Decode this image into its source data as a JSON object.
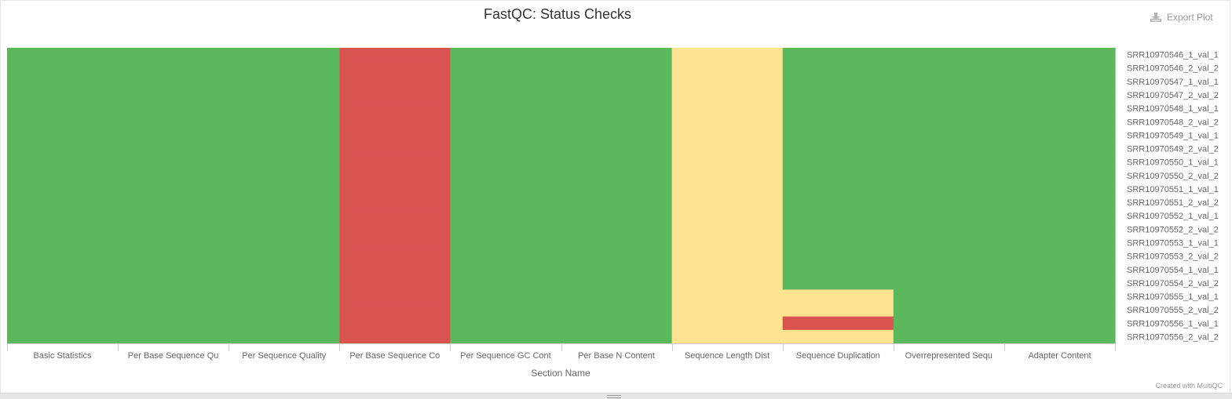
{
  "title": "FastQC: Status Checks",
  "export_label": "Export Plot",
  "credit": "Created with MultiQC",
  "colors": {
    "pass": "#5cb85c",
    "warn": "#fee391",
    "fail": "#d9534f"
  },
  "chart_data": {
    "type": "heatmap",
    "title": "FastQC: Status Checks",
    "xlabel": "Section Name",
    "ylabel": "",
    "x_categories": [
      "Basic Statistics",
      "Per Base Sequence Qu",
      "Per Sequence Quality",
      "Per Base Sequence Co",
      "Per Sequence GC Cont",
      "Per Base N Content",
      "Sequence Length Dist",
      "Sequence Duplication",
      "Overrepresented Sequ",
      "Adapter Content"
    ],
    "y_categories": [
      "SRR10970546_1_val_1",
      "SRR10970546_2_val_2",
      "SRR10970547_1_val_1",
      "SRR10970547_2_val_2",
      "SRR10970548_1_val_1",
      "SRR10970548_2_val_2",
      "SRR10970549_1_val_1",
      "SRR10970549_2_val_2",
      "SRR10970550_1_val_1",
      "SRR10970550_2_val_2",
      "SRR10970551_1_val_1",
      "SRR10970551_2_val_2",
      "SRR10970552_1_val_1",
      "SRR10970552_2_val_2",
      "SRR10970553_1_val_1",
      "SRR10970553_2_val_2",
      "SRR10970554_1_val_1",
      "SRR10970554_2_val_2",
      "SRR10970555_1_val_1",
      "SRR10970555_2_val_2",
      "SRR10970556_1_val_1",
      "SRR10970556_2_val_2"
    ],
    "status_values": {
      "pass": 1,
      "warn": 0.5,
      "fail": 0
    },
    "values": [
      [
        1,
        1,
        1,
        0,
        1,
        1,
        0.5,
        1,
        1,
        1
      ],
      [
        1,
        1,
        1,
        0,
        1,
        1,
        0.5,
        1,
        1,
        1
      ],
      [
        1,
        1,
        1,
        0,
        1,
        1,
        0.5,
        1,
        1,
        1
      ],
      [
        1,
        1,
        1,
        0,
        1,
        1,
        0.5,
        1,
        1,
        1
      ],
      [
        1,
        1,
        1,
        0,
        1,
        1,
        0.5,
        1,
        1,
        1
      ],
      [
        1,
        1,
        1,
        0,
        1,
        1,
        0.5,
        1,
        1,
        1
      ],
      [
        1,
        1,
        1,
        0,
        1,
        1,
        0.5,
        1,
        1,
        1
      ],
      [
        1,
        1,
        1,
        0,
        1,
        1,
        0.5,
        1,
        1,
        1
      ],
      [
        1,
        1,
        1,
        0,
        1,
        1,
        0.5,
        1,
        1,
        1
      ],
      [
        1,
        1,
        1,
        0,
        1,
        1,
        0.5,
        1,
        1,
        1
      ],
      [
        1,
        1,
        1,
        0,
        1,
        1,
        0.5,
        1,
        1,
        1
      ],
      [
        1,
        1,
        1,
        0,
        1,
        1,
        0.5,
        1,
        1,
        1
      ],
      [
        1,
        1,
        1,
        0,
        1,
        1,
        0.5,
        1,
        1,
        1
      ],
      [
        1,
        1,
        1,
        0,
        1,
        1,
        0.5,
        1,
        1,
        1
      ],
      [
        1,
        1,
        1,
        0,
        1,
        1,
        0.5,
        1,
        1,
        1
      ],
      [
        1,
        1,
        1,
        0,
        1,
        1,
        0.5,
        1,
        1,
        1
      ],
      [
        1,
        1,
        1,
        0,
        1,
        1,
        0.5,
        1,
        1,
        1
      ],
      [
        1,
        1,
        1,
        0,
        1,
        1,
        0.5,
        1,
        1,
        1
      ],
      [
        1,
        1,
        1,
        0,
        1,
        1,
        0.5,
        0.5,
        1,
        1
      ],
      [
        1,
        1,
        1,
        0,
        1,
        1,
        0.5,
        0.5,
        1,
        1
      ],
      [
        1,
        1,
        1,
        0,
        1,
        1,
        0.5,
        0,
        1,
        1
      ],
      [
        1,
        1,
        1,
        0,
        1,
        1,
        0.5,
        0.5,
        1,
        1
      ]
    ],
    "legend": "none"
  }
}
